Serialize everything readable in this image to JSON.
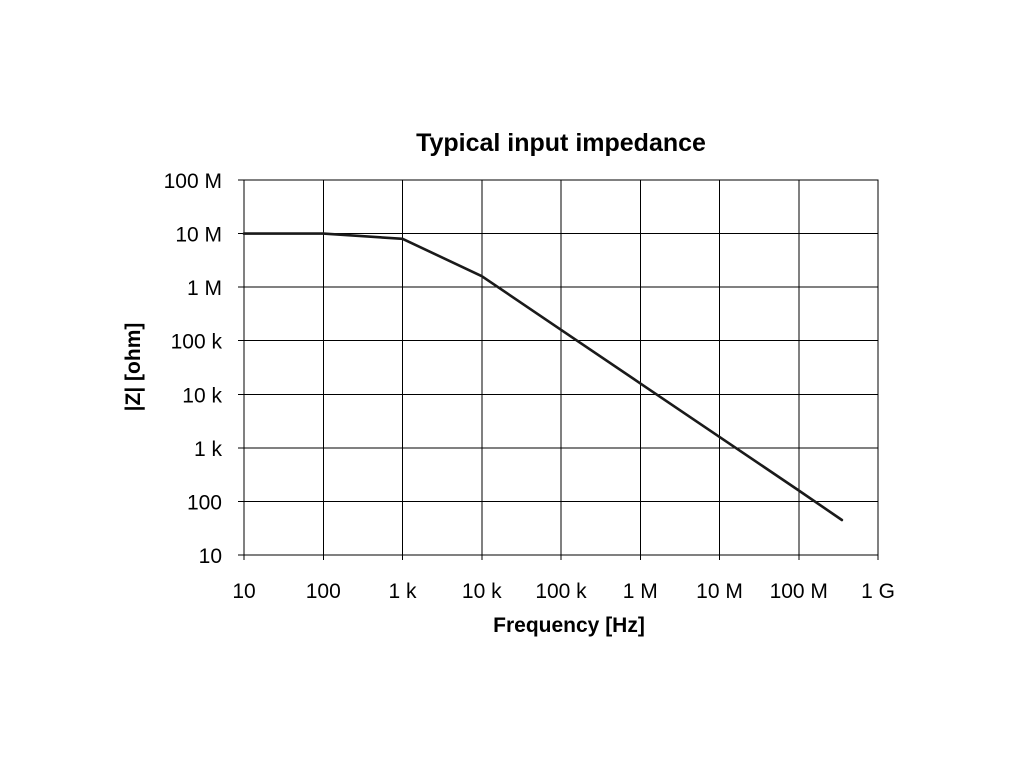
{
  "chart_data": {
    "type": "line",
    "title": "Typical input impedance",
    "xlabel": "Frequency [Hz]",
    "ylabel": "|Z| [ohm]",
    "x_scale": "log",
    "y_scale": "log",
    "xlim": [
      10,
      1000000000
    ],
    "ylim": [
      10,
      100000000
    ],
    "grid": true,
    "x_ticks": [
      {
        "value": 10,
        "label": "10"
      },
      {
        "value": 100,
        "label": "100"
      },
      {
        "value": 1000,
        "label": "1 k"
      },
      {
        "value": 10000,
        "label": "10 k"
      },
      {
        "value": 100000,
        "label": "100 k"
      },
      {
        "value": 1000000,
        "label": "1 M"
      },
      {
        "value": 10000000,
        "label": "10 M"
      },
      {
        "value": 100000000,
        "label": "100 M"
      },
      {
        "value": 1000000000,
        "label": "1 G"
      }
    ],
    "y_ticks": [
      {
        "value": 10,
        "label": "10"
      },
      {
        "value": 100,
        "label": "100"
      },
      {
        "value": 1000,
        "label": "1 k"
      },
      {
        "value": 10000,
        "label": "10 k"
      },
      {
        "value": 100000,
        "label": "100 k"
      },
      {
        "value": 1000000,
        "label": "1 M"
      },
      {
        "value": 10000000,
        "label": "10 M"
      },
      {
        "value": 100000000,
        "label": "100 M"
      }
    ],
    "series": [
      {
        "color": "#1a1a1a",
        "x": [
          10,
          100,
          1000,
          10000,
          100000,
          1000000,
          10000000,
          100000000,
          350000000
        ],
        "y": [
          10000000,
          10000000,
          8000000,
          1600000,
          160000,
          16000,
          1600,
          160,
          45
        ]
      }
    ]
  }
}
